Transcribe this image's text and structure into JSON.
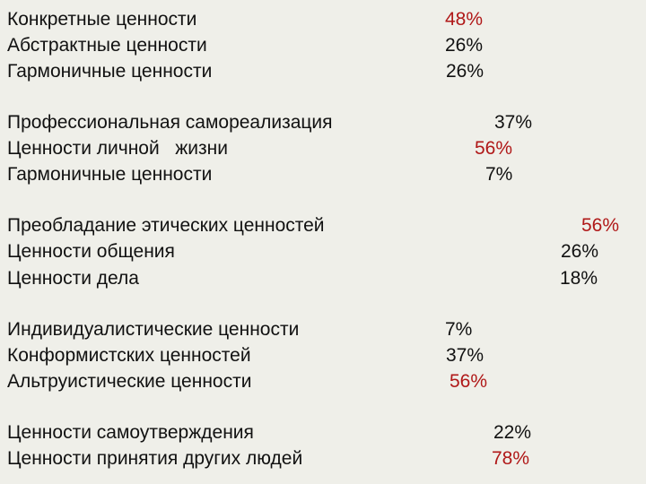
{
  "groups": [
    {
      "rows": [
        {
          "label": "Конкретные ценности",
          "value": "48%",
          "highlight": true
        },
        {
          "label": "Абстрактные ценности",
          "value": "26%",
          "highlight": false
        },
        {
          "label": "Гармоничные ценности",
          "value": "26%",
          "highlight": false
        }
      ]
    },
    {
      "rows": [
        {
          "label": "Профессиональная самореализация",
          "value": "37%",
          "highlight": false
        },
        {
          "label": "Ценности личной   жизни",
          "value": "56%",
          "highlight": true
        },
        {
          "label": "Гармоничные ценности",
          "value": "7%",
          "highlight": false
        }
      ]
    },
    {
      "rows": [
        {
          "label": "Преобладание этических ценностей",
          "value": "56%",
          "highlight": true
        },
        {
          "label": "Ценности общения",
          "value": "26%",
          "highlight": false
        },
        {
          "label": "Ценности дела",
          "value": "18%",
          "highlight": false
        }
      ]
    },
    {
      "rows": [
        {
          "label": "Индивидуалистические ценности",
          "value": "7%",
          "highlight": false
        },
        {
          "label": "Конформистских ценностей",
          "value": "37%",
          "highlight": false
        },
        {
          "label": "Альтруистические ценности",
          "value": "56%",
          "highlight": true
        }
      ]
    },
    {
      "rows": [
        {
          "label": "Ценности самоутверждения",
          "value": "22%",
          "highlight": false
        },
        {
          "label": "Ценности принятия других людей",
          "value": "78%",
          "highlight": true
        }
      ]
    }
  ],
  "colors": {
    "highlight": "#b01818",
    "text": "#111111",
    "background": "#efefe9"
  }
}
